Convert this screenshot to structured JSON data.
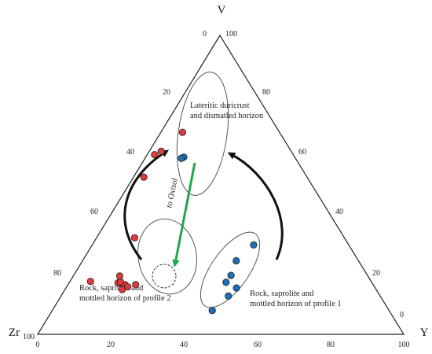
{
  "chart_data": {
    "type": "scatter",
    "subtype": "ternary",
    "title": "",
    "vertices": {
      "top": "V",
      "left": "Zr",
      "right": "Y"
    },
    "tick_values": [
      0,
      20,
      40,
      60,
      80,
      100
    ],
    "ticks": {
      "left_edge": [
        "0",
        "20",
        "40",
        "60",
        "80",
        "100"
      ],
      "right_edge": [
        "100",
        "80",
        "60",
        "40",
        "20",
        "0"
      ],
      "bottom_edge": [
        "0",
        "20",
        "40",
        "60",
        "80",
        "100"
      ]
    },
    "grid": false,
    "series": [
      {
        "color": "#e03b3b",
        "points": [
          {
            "Zr": 31.8,
            "V": 81.1,
            "Y": 7.1
          },
          {
            "Zr": 37.3,
            "V": 64.3,
            "Y": 3.4
          },
          {
            "Zr": 37.9,
            "V": 60.1,
            "Y": 2.0
          },
          {
            "Zr": 44.6,
            "V": 52.6,
            "Y": 2.8
          },
          {
            "Zr": 57.3,
            "V": 32.3,
            "Y": 10.4
          },
          {
            "Zr": 67.8,
            "V": 19.5,
            "Y": 12.7
          },
          {
            "Zr": 68.7,
            "V": 15.9,
            "Y": 15.4
          },
          {
            "Zr": 64.9,
            "V": 16.6,
            "Y": 18.5
          },
          {
            "Zr": 69.4,
            "V": 17.2,
            "Y": 13.4
          },
          {
            "Zr": 67.8,
            "V": 16.6,
            "Y": 15.6
          },
          {
            "Zr": 76.7,
            "V": 17.7,
            "Y": 5.6
          },
          {
            "Zr": 68.6,
            "V": 17.5,
            "Y": 13.9
          },
          {
            "Zr": 69.4,
            "V": 15.0,
            "Y": 15.6
          },
          {
            "Zr": 67.4,
            "V": 15.9,
            "Y": 16.7
          }
        ]
      },
      {
        "color": "#1e6eb4",
        "points": [
          {
            "Zr": 30.3,
            "V": 59.3,
            "Y": 10.4
          },
          {
            "Zr": 31.2,
            "V": 58.9,
            "Y": 9.9
          },
          {
            "Zr": 26.0,
            "V": 29.9,
            "Y": 44.1
          },
          {
            "Zr": 33.4,
            "V": 24.6,
            "Y": 42.0
          },
          {
            "Zr": 37.3,
            "V": 19.7,
            "Y": 43.0
          },
          {
            "Zr": 39.8,
            "V": 17.4,
            "Y": 42.8
          },
          {
            "Zr": 37.9,
            "V": 15.5,
            "Y": 46.6
          },
          {
            "Zr": 41.5,
            "V": 12.8,
            "Y": 45.7
          },
          {
            "Zr": 48.3,
            "V": 8.0,
            "Y": 43.7
          }
        ]
      }
    ],
    "annotations": {
      "duricrust": [
        "Lateritic duricrust",
        "and dismatled horizon"
      ],
      "profile2": [
        "Rock, saprolite and",
        "mottled horizon of profile 2"
      ],
      "profile1": [
        "Rock, saprolite and",
        "mottled horizon of profile 1"
      ],
      "oxisol_arrow": "to Oxisol"
    },
    "arrow_colors": {
      "oxisol": "#1ea84a",
      "curved": "#111111"
    }
  }
}
